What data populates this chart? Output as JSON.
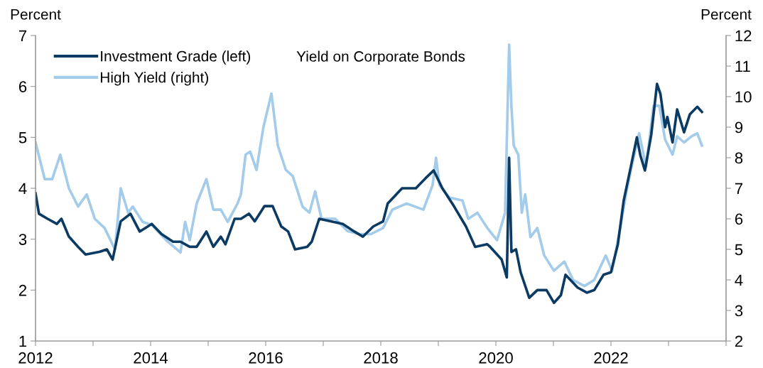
{
  "chart_data": {
    "type": "line",
    "title": "Yield on Corporate Bonds",
    "ylabel": "Percent",
    "y2label": "Percent",
    "xlim": [
      2012,
      2024
    ],
    "xticks": [
      2012,
      {
        "value": 2013,
        "label": null
      },
      2014,
      {
        "value": 2015,
        "label": null
      },
      2016,
      {
        "value": 2017,
        "label": null
      },
      2018,
      {
        "value": 2019,
        "label": null
      },
      2020,
      {
        "value": 2021,
        "label": null
      },
      2022,
      {
        "value": 2023,
        "label": null
      },
      {
        "value": 2024,
        "label": null
      }
    ],
    "ylim": [
      1,
      7
    ],
    "yticks": [
      1,
      2,
      3,
      4,
      5,
      6,
      7
    ],
    "y2lim": [
      2,
      12
    ],
    "y2ticks": [
      2,
      3,
      4,
      5,
      6,
      7,
      8,
      9,
      10,
      11,
      12
    ],
    "legend": "top left",
    "grid": false,
    "series": [
      {
        "name": "High Yield (right)",
        "color": "#a3cbea",
        "axis": "y2",
        "x": [
          2012.0,
          2012.16,
          2012.29,
          2012.43,
          2012.58,
          2012.74,
          2012.89,
          2013.03,
          2013.2,
          2013.38,
          2013.48,
          2013.61,
          2013.69,
          2013.86,
          2014.02,
          2014.27,
          2014.52,
          2014.6,
          2014.68,
          2014.8,
          2014.97,
          2015.09,
          2015.22,
          2015.34,
          2015.51,
          2015.57,
          2015.65,
          2015.73,
          2015.84,
          2015.96,
          2016.1,
          2016.21,
          2016.35,
          2016.47,
          2016.64,
          2016.76,
          2016.86,
          2016.97,
          2017.21,
          2017.42,
          2017.63,
          2017.83,
          2018.04,
          2018.2,
          2018.45,
          2018.74,
          2018.9,
          2018.96,
          2019.02,
          2019.19,
          2019.42,
          2019.52,
          2019.68,
          2019.85,
          2020.02,
          2020.16,
          2020.23,
          2020.27,
          2020.31,
          2020.39,
          2020.45,
          2020.51,
          2020.6,
          2020.72,
          2020.84,
          2021.01,
          2021.19,
          2021.34,
          2021.54,
          2021.71,
          2021.91,
          2022.02,
          2022.16,
          2022.28,
          2022.37,
          2022.49,
          2022.61,
          2022.74,
          2022.84,
          2022.94,
          2023.07,
          2023.15,
          2023.27,
          2023.4,
          2023.5,
          2023.58
        ],
        "values": [
          8.5,
          7.3,
          7.3,
          8.1,
          7.0,
          6.4,
          6.8,
          6.0,
          5.7,
          5.0,
          7.0,
          6.2,
          6.4,
          5.9,
          5.8,
          5.3,
          4.9,
          5.9,
          5.3,
          6.5,
          7.3,
          6.3,
          6.3,
          5.9,
          6.5,
          6.8,
          8.1,
          8.2,
          7.6,
          9.0,
          10.1,
          8.4,
          7.6,
          7.4,
          6.4,
          6.2,
          6.9,
          6.0,
          6.0,
          5.6,
          5.5,
          5.5,
          5.7,
          6.3,
          6.5,
          6.3,
          7.1,
          8.0,
          7.1,
          6.7,
          6.6,
          6.0,
          6.2,
          5.7,
          5.3,
          6.2,
          11.7,
          9.7,
          8.4,
          8.1,
          6.2,
          6.8,
          5.4,
          5.7,
          4.8,
          4.3,
          4.6,
          4.0,
          3.8,
          4.0,
          4.8,
          4.3,
          5.7,
          7.0,
          7.8,
          8.8,
          7.7,
          9.7,
          9.7,
          8.6,
          8.1,
          8.7,
          8.5,
          8.7,
          8.8,
          8.4
        ]
      },
      {
        "name": "Investment Grade (left)",
        "color": "#0b3a63",
        "x": [
          2012.0,
          2012.06,
          2012.21,
          2012.37,
          2012.45,
          2012.58,
          2012.74,
          2012.87,
          2013.11,
          2013.24,
          2013.34,
          2013.48,
          2013.65,
          2013.81,
          2014.02,
          2014.19,
          2014.39,
          2014.52,
          2014.68,
          2014.8,
          2014.97,
          2015.09,
          2015.22,
          2015.3,
          2015.46,
          2015.57,
          2015.71,
          2015.81,
          2015.98,
          2016.12,
          2016.27,
          2016.39,
          2016.51,
          2016.72,
          2016.8,
          2016.93,
          2017.13,
          2017.34,
          2017.54,
          2017.69,
          2017.87,
          2018.04,
          2018.12,
          2018.37,
          2018.61,
          2018.78,
          2018.92,
          2019.07,
          2019.27,
          2019.48,
          2019.64,
          2019.85,
          2019.9,
          2020.1,
          2020.19,
          2020.23,
          2020.27,
          2020.35,
          2020.43,
          2020.58,
          2020.72,
          2020.88,
          2021.01,
          2021.13,
          2021.21,
          2021.42,
          2021.58,
          2021.71,
          2021.87,
          2022.0,
          2022.12,
          2022.22,
          2022.35,
          2022.45,
          2022.51,
          2022.59,
          2022.7,
          2022.8,
          2022.86,
          2022.94,
          2022.98,
          2023.07,
          2023.15,
          2023.27,
          2023.37,
          2023.5,
          2023.58
        ],
        "values": [
          3.9,
          3.5,
          3.4,
          3.3,
          3.4,
          3.05,
          2.85,
          2.7,
          2.75,
          2.8,
          2.6,
          3.35,
          3.5,
          3.15,
          3.3,
          3.1,
          2.95,
          2.95,
          2.85,
          2.85,
          3.15,
          2.85,
          3.05,
          2.9,
          3.4,
          3.4,
          3.5,
          3.35,
          3.65,
          3.65,
          3.25,
          3.15,
          2.8,
          2.85,
          2.95,
          3.4,
          3.35,
          3.3,
          3.15,
          3.05,
          3.25,
          3.35,
          3.7,
          4.0,
          4.0,
          4.2,
          4.35,
          4.0,
          3.65,
          3.25,
          2.85,
          2.9,
          2.85,
          2.6,
          2.25,
          4.6,
          2.75,
          2.8,
          2.35,
          1.85,
          2.0,
          2.0,
          1.75,
          1.9,
          2.3,
          2.05,
          1.95,
          2.0,
          2.3,
          2.35,
          2.9,
          3.75,
          4.45,
          5.0,
          4.65,
          4.35,
          5.05,
          6.05,
          5.85,
          5.2,
          5.4,
          4.9,
          5.55,
          5.1,
          5.45,
          5.6,
          5.5
        ]
      }
    ]
  }
}
